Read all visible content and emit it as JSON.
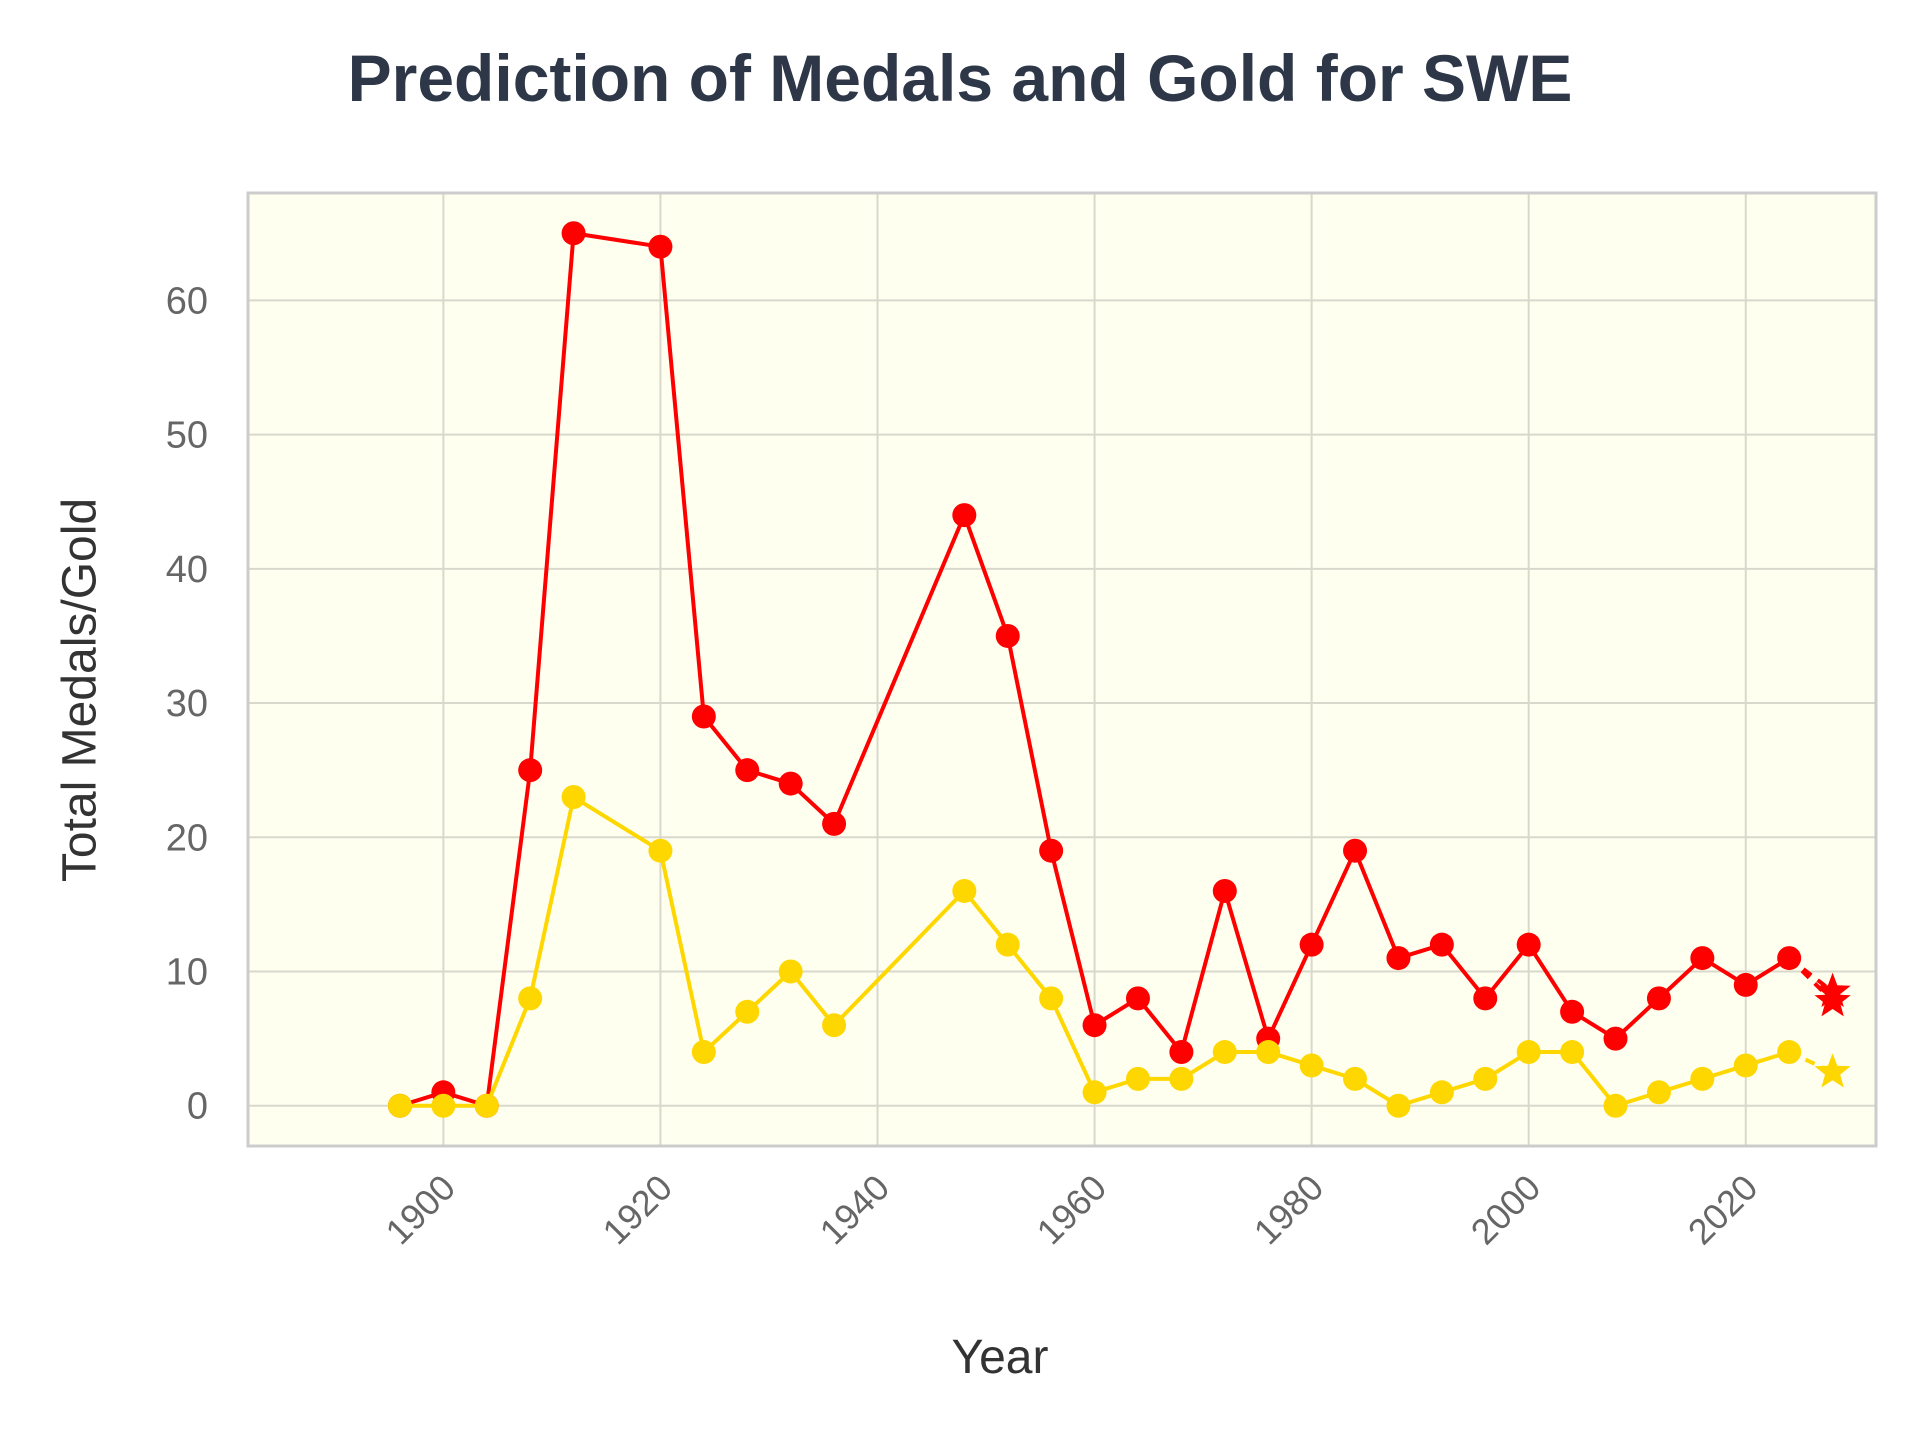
{
  "chart_data": {
    "type": "line",
    "title": "Prediction of Medals and Gold for SWE",
    "xlabel": "Year",
    "ylabel": "Total Medals/Gold",
    "xlim": [
      1882,
      2032
    ],
    "ylim": [
      -3,
      68
    ],
    "x_ticks": [
      1900,
      1920,
      1940,
      1960,
      1980,
      2000,
      2020
    ],
    "y_ticks": [
      0,
      10,
      20,
      30,
      40,
      50,
      60
    ],
    "grid": true,
    "background_color": "#fffff0",
    "x": [
      1896,
      1900,
      1904,
      1908,
      1912,
      1920,
      1924,
      1928,
      1932,
      1936,
      1948,
      1952,
      1956,
      1960,
      1964,
      1968,
      1972,
      1976,
      1980,
      1984,
      1988,
      1992,
      1996,
      2000,
      2004,
      2008,
      2012,
      2016,
      2020,
      2024
    ],
    "series": [
      {
        "color": "#ff0000",
        "values": [
          0,
          1,
          0,
          25,
          65,
          64,
          29,
          25,
          24,
          21,
          44,
          35,
          19,
          6,
          8,
          4,
          16,
          5,
          12,
          19,
          11,
          12,
          8,
          12,
          7,
          5,
          8,
          11,
          9,
          11
        ],
        "prediction": {
          "x": 2028,
          "values": [
            8.5,
            7.8
          ]
        }
      },
      {
        "color": "#ffd700",
        "values": [
          0,
          0,
          0,
          8,
          23,
          19,
          4,
          7,
          10,
          6,
          16,
          12,
          8,
          1,
          2,
          2,
          4,
          4,
          3,
          2,
          0,
          1,
          2,
          4,
          4,
          0,
          1,
          2,
          3,
          4
        ],
        "prediction": {
          "x": 2028,
          "values": [
            2.5
          ]
        }
      }
    ]
  }
}
